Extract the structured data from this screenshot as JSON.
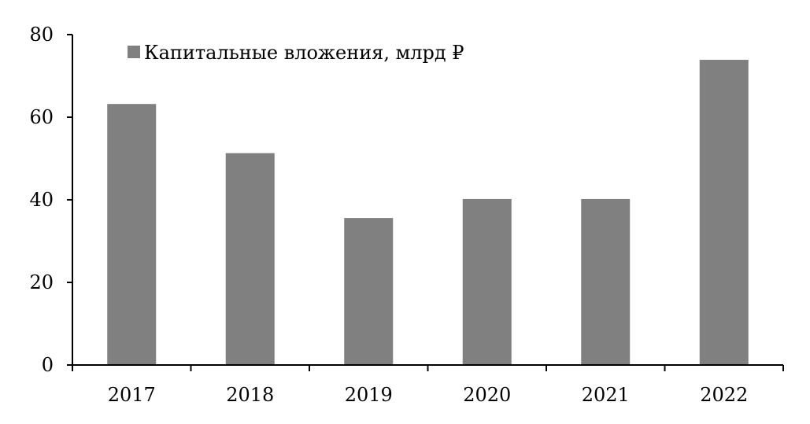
{
  "chart_data": {
    "type": "bar",
    "title": "",
    "xlabel": "",
    "ylabel": "",
    "categories": [
      "2017",
      "2018",
      "2019",
      "2020",
      "2021",
      "2022"
    ],
    "series": [
      {
        "name": "Капитальные вложения, млрд ₽",
        "values": [
          63.2,
          51.3,
          35.6,
          40.2,
          40.2,
          73.9
        ],
        "color": "#808080"
      }
    ],
    "ylim": [
      0,
      80
    ],
    "yticks": [
      "0",
      "20",
      "40",
      "60",
      "80"
    ],
    "grid": false,
    "legend_position": "top-left"
  }
}
